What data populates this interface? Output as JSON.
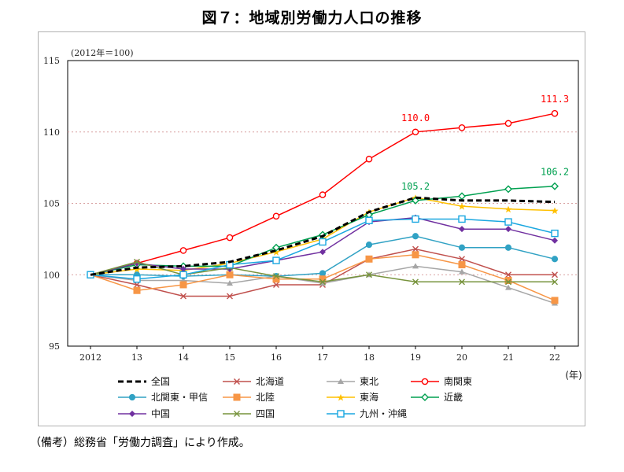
{
  "chart_data": {
    "type": "line",
    "title": "図７：地域別労働力人口の推移",
    "unit_note": "(2012年＝100)",
    "xlabel": "(年)",
    "ylabel": "",
    "ylim": [
      95,
      115
    ],
    "yticks": [
      95,
      100,
      105,
      110,
      115
    ],
    "categories": [
      "2012",
      "13",
      "14",
      "15",
      "16",
      "17",
      "18",
      "19",
      "20",
      "21",
      "22"
    ],
    "series": [
      {
        "name": "全国",
        "color": "#000000",
        "marker": "none",
        "dashed": true,
        "values": [
          100,
          100.5,
          100.6,
          100.9,
          101.7,
          102.7,
          104.4,
          105.4,
          105.2,
          105.2,
          105.1
        ]
      },
      {
        "name": "北海道",
        "color": "#c0504d",
        "marker": "x",
        "dashed": false,
        "values": [
          100,
          99.3,
          98.5,
          98.5,
          99.3,
          99.3,
          101.1,
          101.8,
          101.1,
          100.0,
          100.0
        ]
      },
      {
        "name": "東北",
        "color": "#a6a6a6",
        "marker": "triangle",
        "dashed": false,
        "values": [
          100,
          99.6,
          99.6,
          99.4,
          99.9,
          99.4,
          100.0,
          100.6,
          100.2,
          99.1,
          98.0
        ]
      },
      {
        "name": "南関東",
        "color": "#ff0000",
        "marker": "circle",
        "dashed": false,
        "values": [
          100,
          100.8,
          101.7,
          102.6,
          104.1,
          105.6,
          108.1,
          110.0,
          110.3,
          110.6,
          111.3
        ]
      },
      {
        "name": "北関東・甲信",
        "color": "#31a2c4",
        "marker": "dot",
        "dashed": false,
        "values": [
          100,
          100.0,
          99.9,
          100.0,
          99.9,
          100.1,
          102.1,
          102.7,
          101.9,
          101.9,
          101.1
        ]
      },
      {
        "name": "北陸",
        "color": "#f79646",
        "marker": "square",
        "dashed": false,
        "values": [
          100,
          98.9,
          99.3,
          100.0,
          99.7,
          99.7,
          101.1,
          101.4,
          100.7,
          99.6,
          98.2
        ]
      },
      {
        "name": "東海",
        "color": "#ffc000",
        "marker": "star",
        "dashed": false,
        "values": [
          100,
          100.4,
          100.3,
          100.8,
          101.6,
          102.5,
          104.4,
          105.4,
          104.8,
          104.6,
          104.5
        ]
      },
      {
        "name": "近畿",
        "color": "#00a050",
        "marker": "diamond",
        "dashed": false,
        "values": [
          100,
          100.7,
          100.6,
          100.6,
          101.9,
          102.8,
          104.2,
          105.2,
          105.5,
          106.0,
          106.2
        ]
      },
      {
        "name": "中国",
        "color": "#7030a0",
        "marker": "filled-diamond",
        "dashed": false,
        "values": [
          100,
          100.8,
          100.4,
          100.4,
          101.0,
          101.6,
          103.7,
          104.0,
          103.2,
          103.2,
          102.4
        ]
      },
      {
        "name": "四国",
        "color": "#77933c",
        "marker": "x",
        "dashed": false,
        "values": [
          100,
          100.9,
          100.0,
          100.5,
          99.9,
          99.5,
          100.0,
          99.5,
          99.5,
          99.5,
          99.5
        ]
      },
      {
        "name": "九州・沖縄",
        "color": "#1aa7e0",
        "marker": "open-square",
        "dashed": false,
        "values": [
          100,
          99.7,
          100.0,
          100.7,
          101.0,
          102.3,
          103.8,
          103.9,
          103.9,
          103.7,
          102.9
        ]
      }
    ],
    "annotations": [
      {
        "text": "110.0",
        "series": "南関東",
        "category": "19",
        "color": "#ff0000"
      },
      {
        "text": "111.3",
        "series": "南関東",
        "category": "22",
        "color": "#ff0000"
      },
      {
        "text": "105.2",
        "series": "近畿",
        "category": "19",
        "color": "#00a050"
      },
      {
        "text": "106.2",
        "series": "近畿",
        "category": "22",
        "color": "#00a050"
      }
    ],
    "grid": true,
    "legend": "bottom"
  },
  "footnote": "（備考）総務省「労働力調査」により作成。"
}
